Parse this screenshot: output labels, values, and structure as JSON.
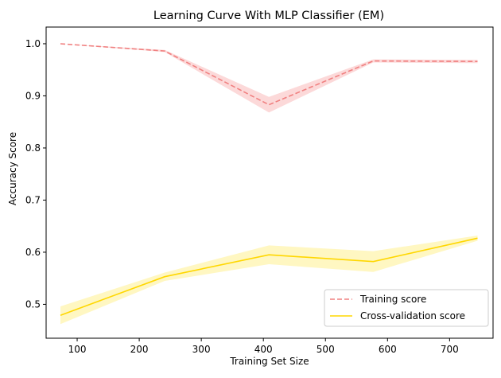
{
  "chart_data": {
    "type": "line",
    "title": "Learning Curve With MLP Classifier (EM)",
    "xlabel": "Training Set Size",
    "ylabel": "Accuracy Score",
    "xlim": [
      50,
      770
    ],
    "ylim": [
      0.435,
      1.032
    ],
    "xticks": [
      100,
      200,
      300,
      400,
      500,
      600,
      700
    ],
    "yticks": [
      0.5,
      0.6,
      0.7,
      0.8,
      0.9,
      1.0
    ],
    "ytick_labels": [
      "0.5",
      "0.6",
      "0.7",
      "0.8",
      "0.9",
      "1.0"
    ],
    "x": [
      73,
      241,
      409,
      577,
      745
    ],
    "grid": false,
    "legend_position": "lower right",
    "series": [
      {
        "name": "Training score",
        "style": "dashed",
        "color": "#f08080",
        "band_color": "#fcd9d9",
        "values": [
          1.0,
          0.986,
          0.883,
          0.967,
          0.966
        ],
        "band_low": [
          1.0,
          0.984,
          0.868,
          0.964,
          0.963
        ],
        "band_high": [
          1.0,
          0.988,
          0.898,
          0.97,
          0.969
        ]
      },
      {
        "name": "Cross-validation score",
        "style": "solid",
        "color": "#ffd700",
        "band_color": "#fff7c2",
        "values": [
          0.479,
          0.553,
          0.595,
          0.582,
          0.627
        ],
        "band_low": [
          0.462,
          0.545,
          0.577,
          0.562,
          0.622
        ],
        "band_high": [
          0.496,
          0.561,
          0.613,
          0.602,
          0.632
        ]
      }
    ]
  }
}
